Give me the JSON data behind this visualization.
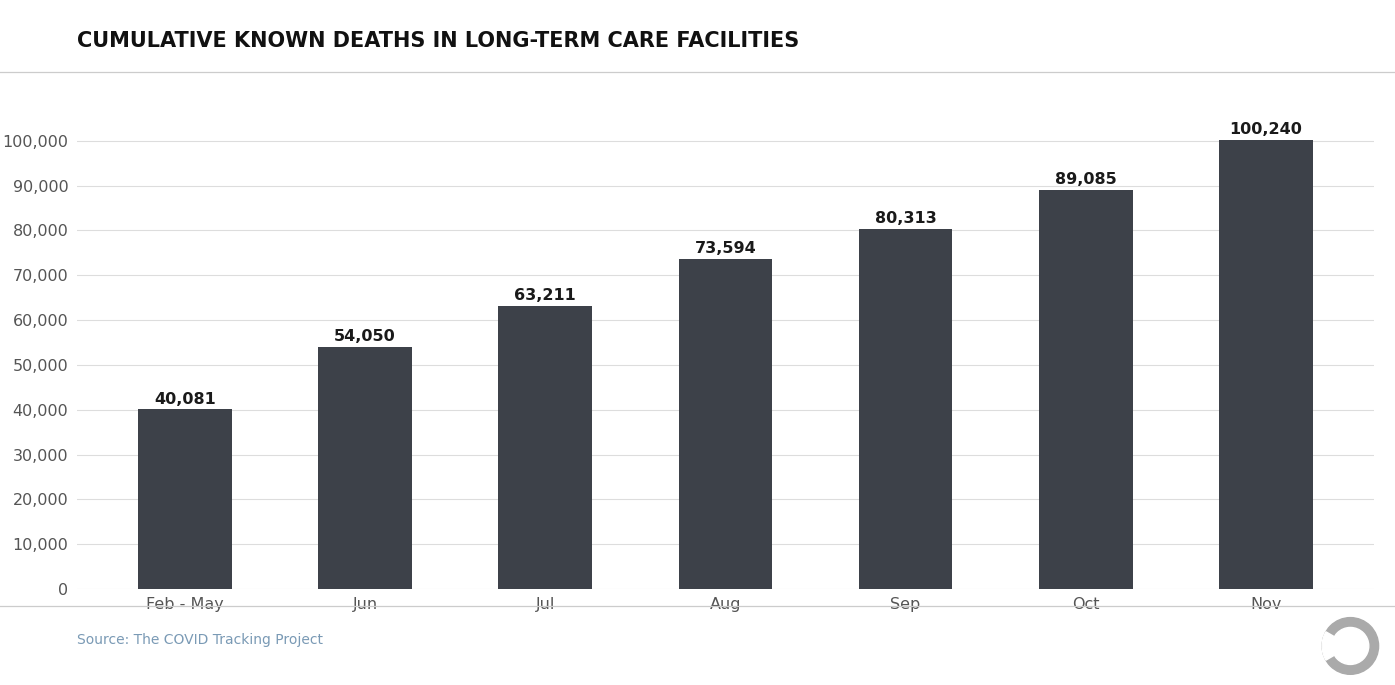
{
  "title": "CUMULATIVE KNOWN DEATHS IN LONG-TERM CARE FACILITIES",
  "categories": [
    "Feb - May",
    "Jun",
    "Jul",
    "Aug",
    "Sep",
    "Oct",
    "Nov"
  ],
  "values": [
    40081,
    54050,
    63211,
    73594,
    80313,
    89085,
    100240
  ],
  "bar_color": "#3d4149",
  "label_color": "#1a1a1a",
  "ytick_color": "#555555",
  "xtick_color": "#555555",
  "source_text": "Source: The COVID Tracking Project",
  "source_color": "#7a9ab5",
  "ylim": [
    0,
    110000
  ],
  "yticks": [
    0,
    10000,
    20000,
    30000,
    40000,
    50000,
    60000,
    70000,
    80000,
    90000,
    100000
  ],
  "background_color": "#ffffff",
  "title_fontsize": 15,
  "bar_label_fontsize": 11.5,
  "ytick_fontsize": 11.5,
  "xtick_fontsize": 11.5,
  "source_fontsize": 10,
  "grid_color": "#dddddd",
  "separator_color": "#cccccc"
}
